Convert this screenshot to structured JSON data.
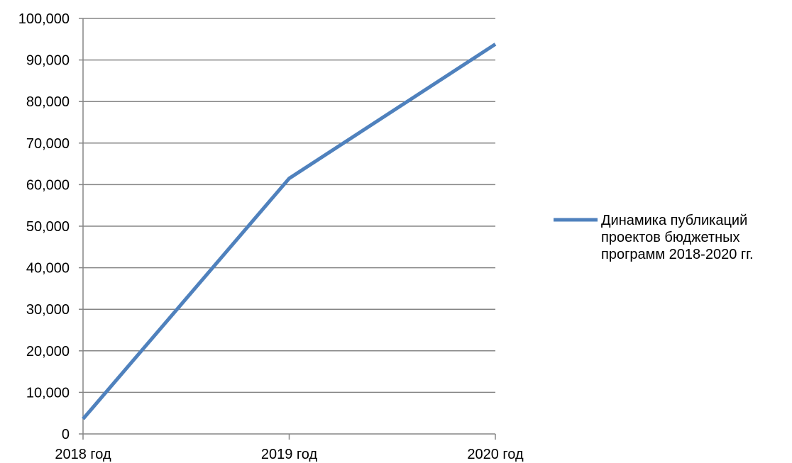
{
  "chart_data": {
    "type": "line",
    "title": "",
    "xlabel": "",
    "ylabel": "",
    "categories": [
      "2018 год",
      "2019 год",
      "2020 год"
    ],
    "series": [
      {
        "name": "Динамика публикаций проектов бюджетных программ 2018-2020 гг.",
        "name_lines": [
          "Динамика публикаций",
          "проектов бюджетных",
          "программ 2018-2020 гг."
        ],
        "values": [
          3600,
          61500,
          93800
        ],
        "color": "#4F81BD"
      }
    ],
    "ylim": [
      0,
      100000
    ],
    "yticks": [
      0,
      10000,
      20000,
      30000,
      40000,
      50000,
      60000,
      70000,
      80000,
      90000,
      100000
    ],
    "ytick_labels": [
      "0",
      "10,000",
      "20,000",
      "30,000",
      "40,000",
      "50,000",
      "60,000",
      "70,000",
      "80,000",
      "90,000",
      "100,000"
    ],
    "grid": true,
    "legend": "right"
  }
}
